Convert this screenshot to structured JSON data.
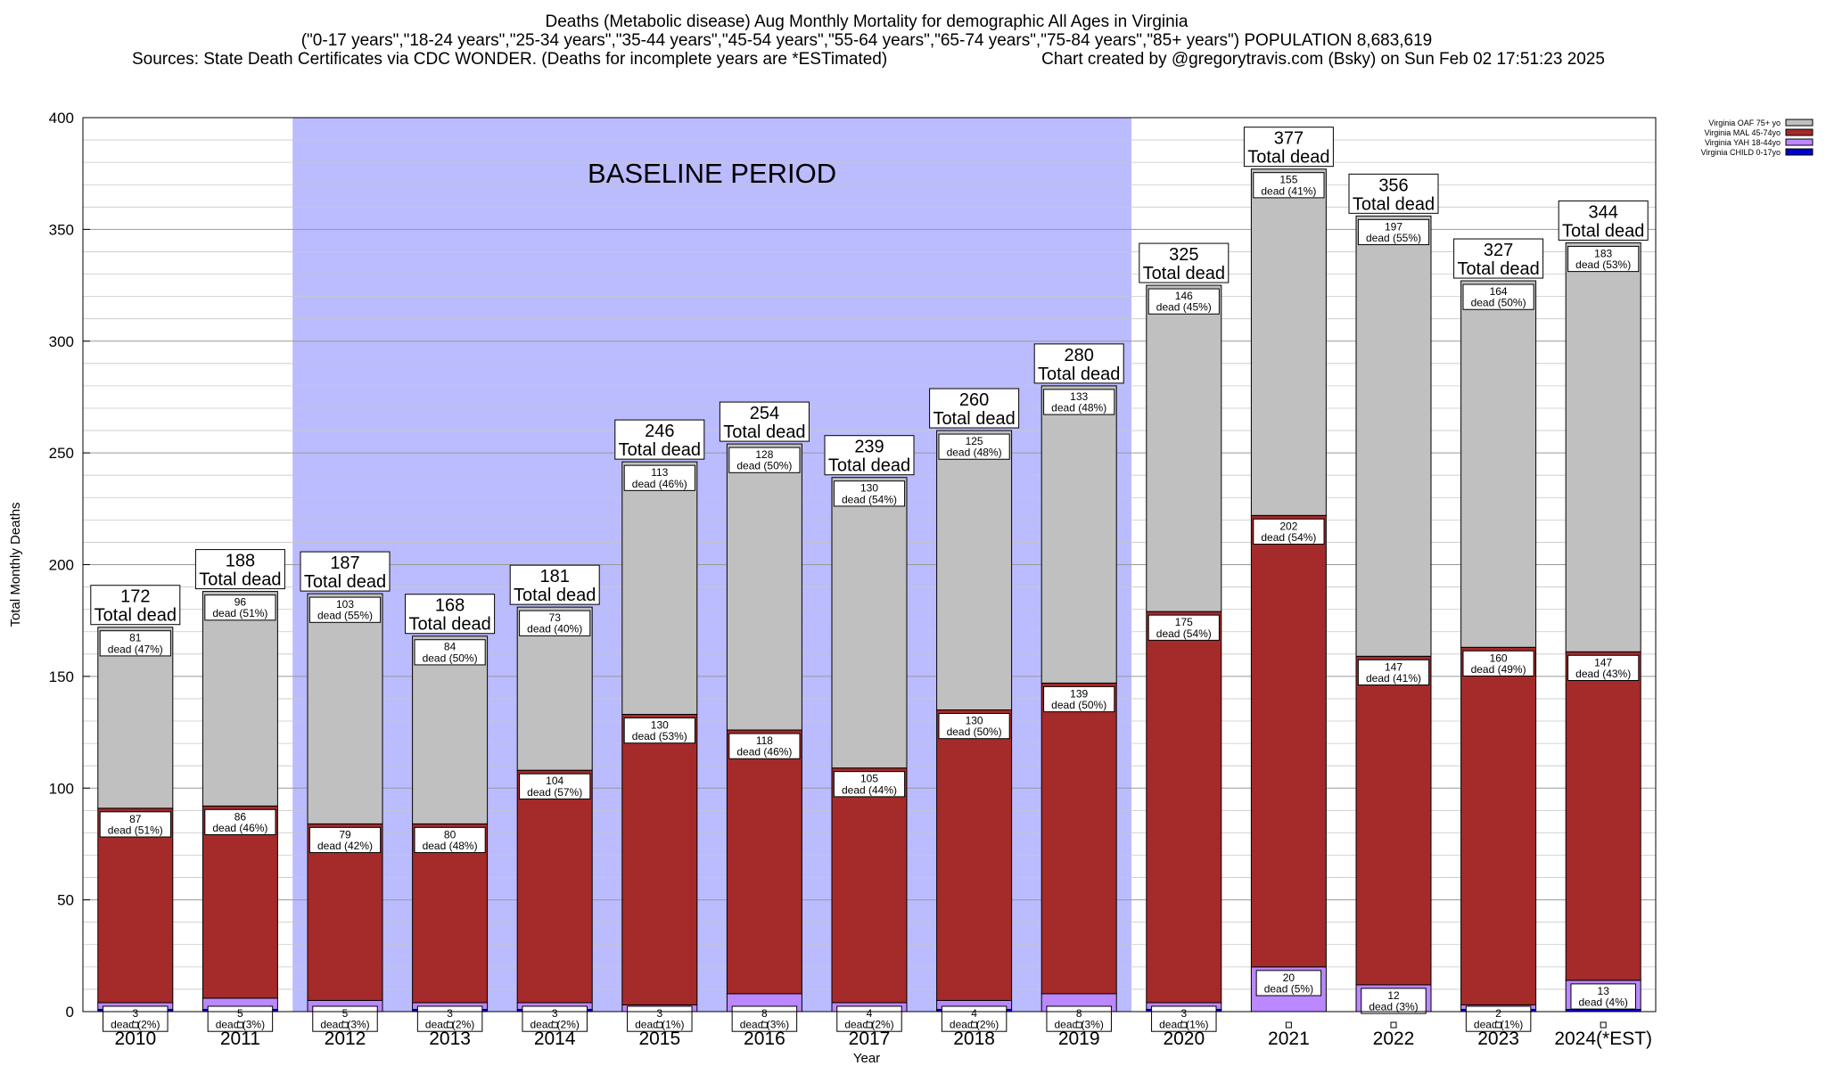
{
  "header": {
    "title": "Deaths (Metabolic disease) Aug Monthly Mortality for demographic All Ages in Virginia",
    "subtitle": "(\"0-17 years\",\"18-24 years\",\"25-34 years\",\"35-44 years\",\"45-54 years\",\"55-64 years\",\"65-74 years\",\"75-84 years\",\"85+ years\") POPULATION 8,683,619",
    "sources": "Sources: State Death Certificates via CDC WONDER. (Deaths for incomplete years are *ESTimated)",
    "credit": "Chart created by @gregorytravis.com (Bsky) on Sun Feb 02 17:51:23 2025"
  },
  "chart_data": {
    "type": "bar",
    "stacked": true,
    "xlabel": "Year",
    "ylabel": "Total Monthly Deaths",
    "ylim": [
      0,
      400
    ],
    "yticks": [
      0,
      50,
      100,
      150,
      200,
      250,
      300,
      350,
      400
    ],
    "grid": true,
    "legend_position": "top-right",
    "categories": [
      "2010",
      "2011",
      "2012",
      "2013",
      "2014",
      "2015",
      "2016",
      "2017",
      "2018",
      "2019",
      "2020",
      "2021",
      "2022",
      "2023",
      "2024(*EST)"
    ],
    "baseline": {
      "label": "BASELINE PERIOD",
      "start": "2012",
      "end": "2019",
      "color": "#bbbbff"
    },
    "total_suffix": "Total dead",
    "segment_prefix": "dead",
    "totals": [
      172,
      188,
      187,
      168,
      181,
      246,
      254,
      239,
      260,
      280,
      325,
      377,
      356,
      327,
      344
    ],
    "series": [
      {
        "name": "Virginia CHILD 0-17yo",
        "color": "#0000cc",
        "values": [
          1,
          1,
          0,
          1,
          1,
          0,
          0,
          0,
          1,
          0,
          1,
          0,
          0,
          1,
          1
        ],
        "labels": [
          "",
          "",
          "",
          "",
          "",
          "",
          "",
          "",
          "",
          "",
          "",
          "",
          "",
          "",
          ""
        ],
        "marker": true
      },
      {
        "name": "Virginia YAH 18-44yo",
        "color": "#bb88ff",
        "values": [
          3,
          5,
          5,
          3,
          3,
          3,
          8,
          4,
          4,
          8,
          3,
          20,
          12,
          2,
          13
        ],
        "labels": [
          "(2%)",
          "(3%)",
          "(3%)",
          "(2%)",
          "(2%)",
          "(1%)",
          "(3%)",
          "(2%)",
          "(2%)",
          "(3%)",
          "(1%)",
          "(5%)",
          "(3%)",
          "(1%)",
          "(4%)"
        ]
      },
      {
        "name": "Virginia MAL 45-74yo",
        "color": "#a52a2a",
        "values": [
          87,
          86,
          79,
          80,
          104,
          130,
          118,
          105,
          130,
          139,
          175,
          202,
          147,
          160,
          147
        ],
        "labels": [
          "(51%)",
          "(46%)",
          "(42%)",
          "(48%)",
          "(57%)",
          "(53%)",
          "(46%)",
          "(44%)",
          "(50%)",
          "(50%)",
          "(54%)",
          "(54%)",
          "(41%)",
          "(49%)",
          "(43%)"
        ]
      },
      {
        "name": "Virginia OAF 75+ yo",
        "color": "#c0c0c0",
        "values": [
          81,
          96,
          103,
          84,
          73,
          113,
          128,
          130,
          125,
          133,
          146,
          155,
          197,
          164,
          183
        ],
        "labels": [
          "(47%)",
          "(51%)",
          "(55%)",
          "(50%)",
          "(40%)",
          "(46%)",
          "(50%)",
          "(54%)",
          "(48%)",
          "(48%)",
          "(45%)",
          "(41%)",
          "(55%)",
          "(50%)",
          "(53%)"
        ]
      }
    ],
    "legend_order": [
      "Virginia OAF 75+ yo",
      "Virginia MAL 45-74yo",
      "Virginia YAH 18-44yo",
      "Virginia CHILD 0-17yo"
    ]
  }
}
